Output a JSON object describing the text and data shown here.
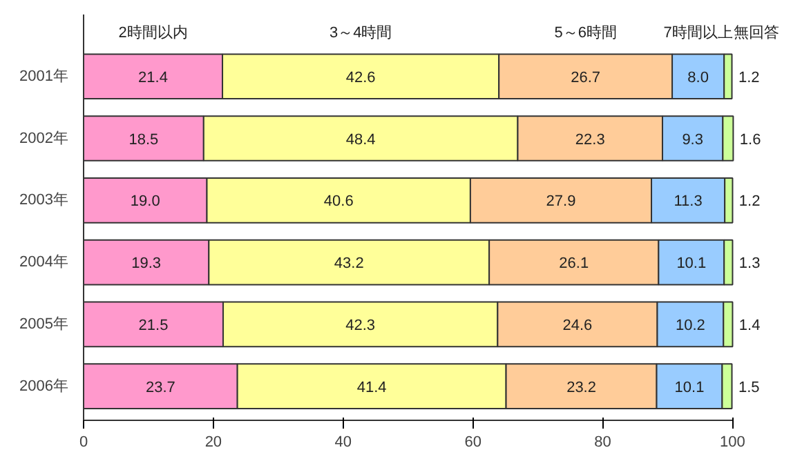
{
  "chart_data": {
    "type": "bar",
    "orientation": "horizontal",
    "stacked": true,
    "categories": [
      "2001年",
      "2002年",
      "2003年",
      "2004年",
      "2005年",
      "2006年"
    ],
    "series": [
      {
        "name": "2時間以内",
        "color": "#ff99cc",
        "values": [
          21.4,
          18.5,
          19.0,
          19.3,
          21.5,
          23.7
        ],
        "value_labels": [
          "21.4",
          "18.5",
          "19.0",
          "19.3",
          "21.5",
          "23.7"
        ]
      },
      {
        "name": "3～4時間",
        "color": "#ffff99",
        "values": [
          42.6,
          48.4,
          40.6,
          43.2,
          42.3,
          41.4
        ],
        "value_labels": [
          "42.6",
          "48.4",
          "40.6",
          "43.2",
          "42.3",
          "41.4"
        ]
      },
      {
        "name": "5～6時間",
        "color": "#ffcc99",
        "values": [
          26.7,
          22.3,
          27.9,
          26.1,
          24.6,
          23.2
        ],
        "value_labels": [
          "26.7",
          "22.3",
          "27.9",
          "26.1",
          "24.6",
          "23.2"
        ]
      },
      {
        "name": "7時間以上",
        "color": "#99ccff",
        "values": [
          8.0,
          9.3,
          11.3,
          10.1,
          10.2,
          10.1
        ],
        "value_labels": [
          "8.0",
          "9.3",
          "11.3",
          "10.1",
          "10.2",
          "10.1"
        ]
      },
      {
        "name": "無回答",
        "color": "#ccff99",
        "values": [
          1.2,
          1.6,
          1.2,
          1.3,
          1.4,
          1.5
        ],
        "value_labels": [
          "1.2",
          "1.6",
          "1.2",
          "1.3",
          "1.4",
          "1.5"
        ]
      }
    ],
    "xlim": [
      0,
      100
    ],
    "xticks": [
      0,
      20,
      40,
      60,
      80,
      100
    ],
    "grid": false,
    "legend": "top"
  }
}
